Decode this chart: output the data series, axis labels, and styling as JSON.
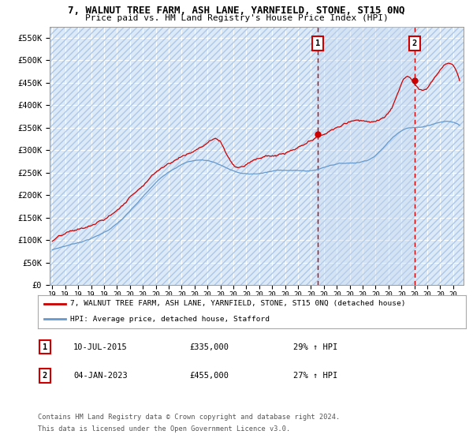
{
  "title": "7, WALNUT TREE FARM, ASH LANE, YARNFIELD, STONE, ST15 0NQ",
  "subtitle": "Price paid vs. HM Land Registry's House Price Index (HPI)",
  "legend_line1": "7, WALNUT TREE FARM, ASH LANE, YARNFIELD, STONE, ST15 0NQ (detached house)",
  "legend_line2": "HPI: Average price, detached house, Stafford",
  "sale1_label": "1",
  "sale1_date": "10-JUL-2015",
  "sale1_price": "£335,000",
  "sale1_pct": "29% ↑ HPI",
  "sale1_year": 2015.52,
  "sale1_value": 335000,
  "sale2_label": "2",
  "sale2_date": "04-JAN-2023",
  "sale2_price": "£455,000",
  "sale2_pct": "27% ↑ HPI",
  "sale2_year": 2023.01,
  "sale2_value": 455000,
  "footer_line1": "Contains HM Land Registry data © Crown copyright and database right 2024.",
  "footer_line2": "This data is licensed under the Open Government Licence v3.0.",
  "ylim_min": 0,
  "ylim_max": 575000,
  "xlim_min": 1994.8,
  "xlim_max": 2026.8,
  "yticks": [
    0,
    50000,
    100000,
    150000,
    200000,
    250000,
    300000,
    350000,
    400000,
    450000,
    500000,
    550000
  ],
  "ytick_labels": [
    "£0",
    "£50K",
    "£100K",
    "£150K",
    "£200K",
    "£250K",
    "£300K",
    "£350K",
    "£400K",
    "£450K",
    "£500K",
    "£550K"
  ],
  "xtick_years": [
    1995,
    1996,
    1997,
    1998,
    1999,
    2000,
    2001,
    2002,
    2003,
    2004,
    2005,
    2006,
    2007,
    2008,
    2009,
    2010,
    2011,
    2012,
    2013,
    2014,
    2015,
    2016,
    2017,
    2018,
    2019,
    2020,
    2021,
    2022,
    2023,
    2024,
    2025,
    2026
  ],
  "plot_bg": "#dce9f7",
  "hatch_color": "#aec8e8",
  "red_color": "#cc0000",
  "blue_color": "#6699cc",
  "grid_color": "#ffffff",
  "box_edge_color": "#cc0000",
  "shade_color": "#c5d8ef"
}
